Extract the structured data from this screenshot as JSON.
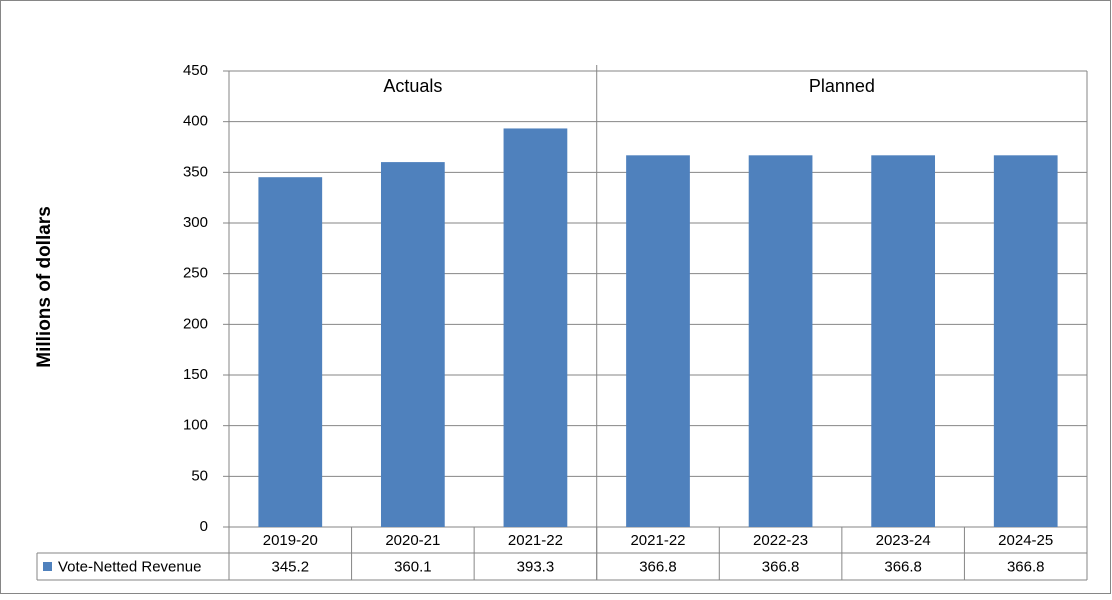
{
  "chart_data": {
    "type": "bar",
    "y_label": "Millions  of dollars",
    "categories": [
      "2019-20",
      "2020-21",
      "2021-22",
      "2021-22",
      "2022-23",
      "2023-24",
      "2024-25"
    ],
    "series": [
      {
        "name": "Vote-Netted Revenue",
        "color": "#4f81bd",
        "values": [
          345.2,
          360.1,
          393.3,
          366.8,
          366.8,
          366.8,
          366.8
        ]
      }
    ],
    "groups": [
      {
        "label": "Actuals",
        "size": 3
      },
      {
        "label": "Planned",
        "size": 4
      }
    ],
    "ylim": [
      0,
      450
    ],
    "yticks": [
      0,
      50,
      100,
      150,
      200,
      250,
      300,
      350,
      400,
      450
    ],
    "grid": true
  }
}
